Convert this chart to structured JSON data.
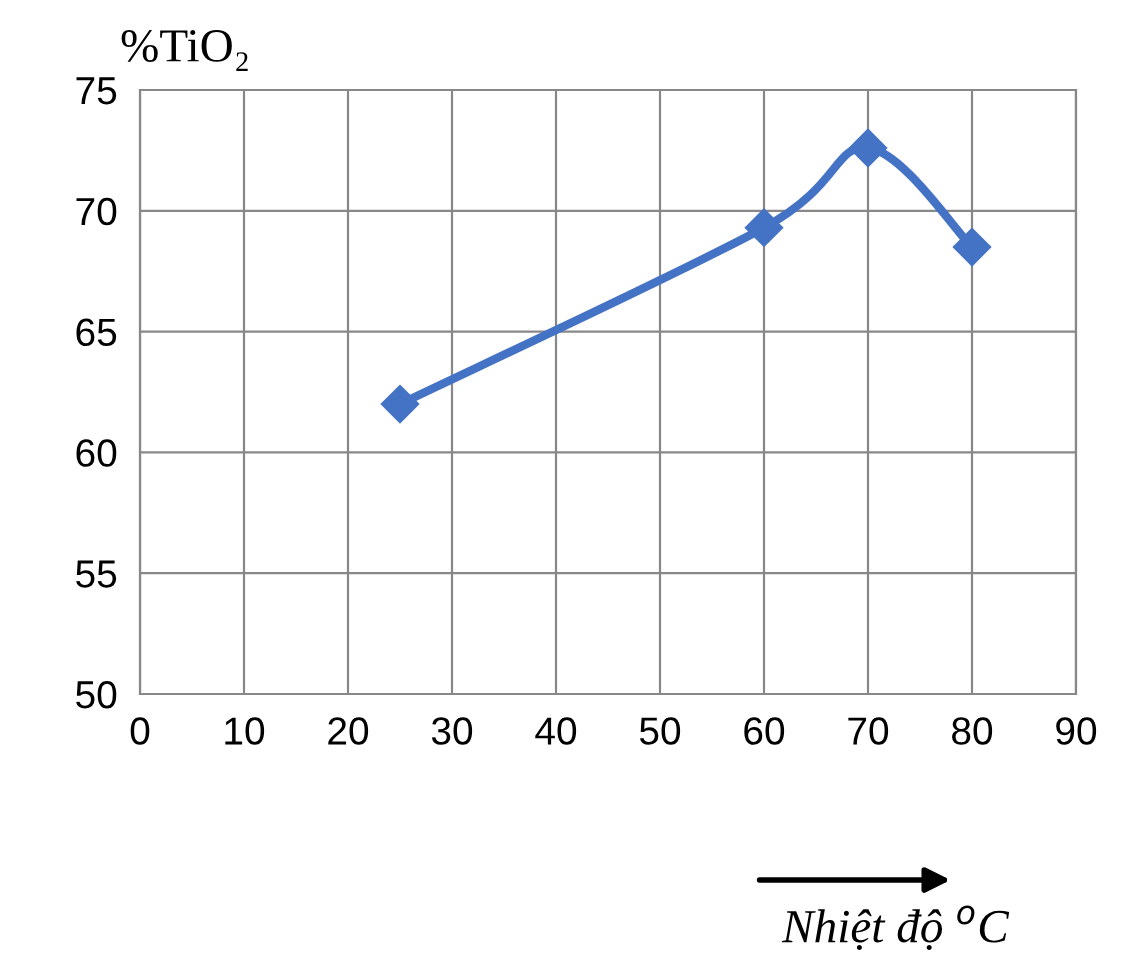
{
  "chart_data": {
    "type": "line",
    "ylabel": "%TiO₂",
    "xlabel": "Nhiệt độ $^{o}$C",
    "x": [
      25,
      60,
      70,
      80
    ],
    "series": [
      {
        "color": "#4472c4",
        "values": [
          62.0,
          69.3,
          72.6,
          68.5
        ]
      }
    ],
    "xlim": [
      0,
      90
    ],
    "xticks": [
      0,
      10,
      20,
      30,
      40,
      50,
      60,
      70,
      80,
      90
    ],
    "ylim": [
      50,
      75
    ],
    "yticks": [
      50,
      55,
      60,
      65,
      70,
      75
    ],
    "grid": true,
    "marker": "diamond",
    "line_style": "solid",
    "legend": false
  }
}
